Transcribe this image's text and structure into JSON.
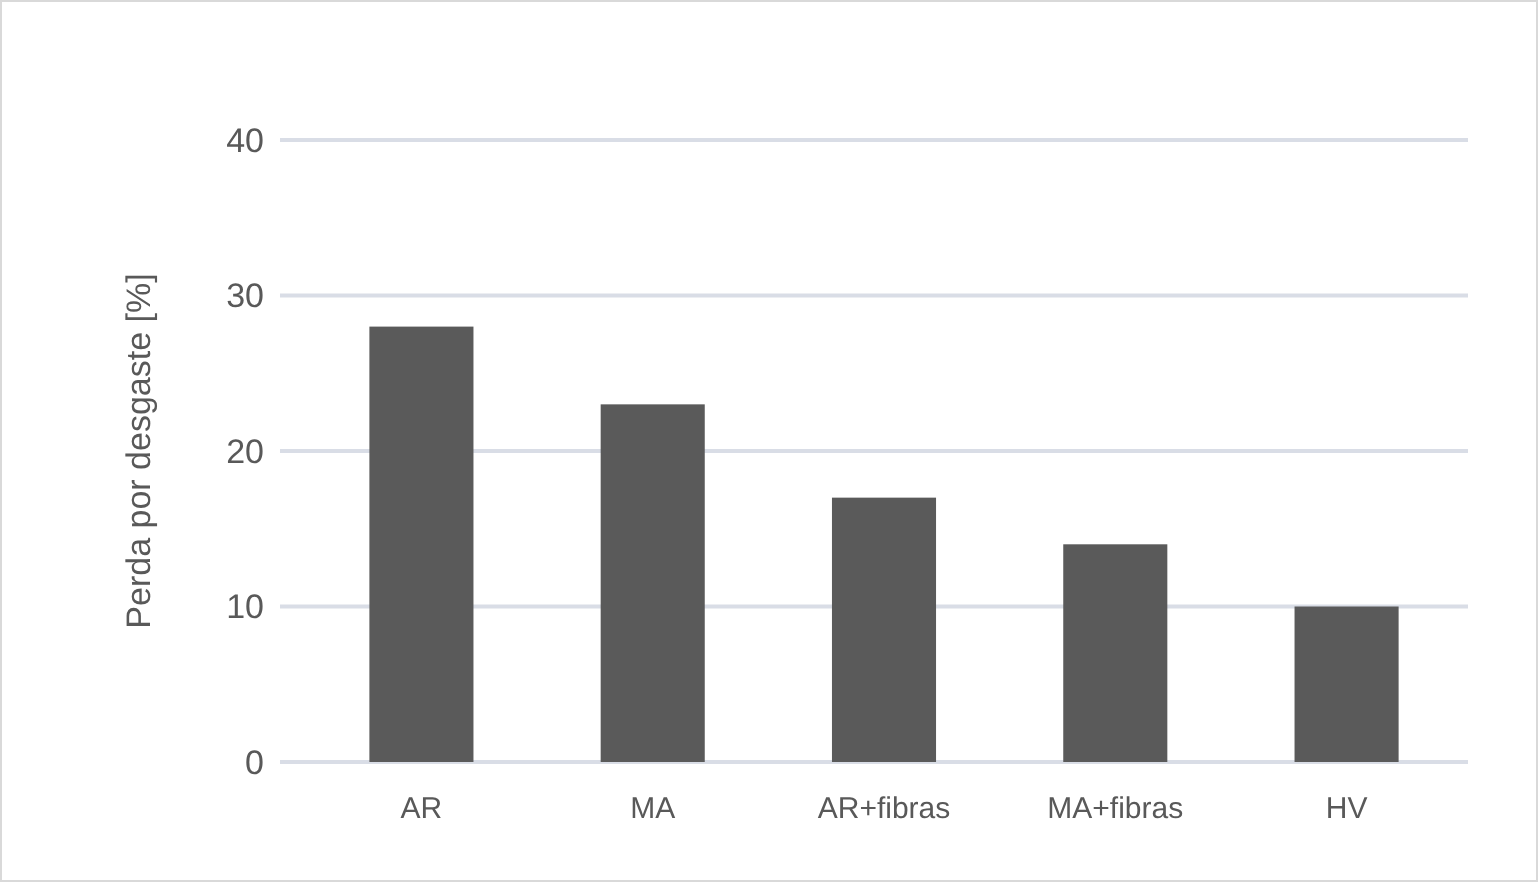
{
  "chart_data": {
    "type": "bar",
    "ylabel": "Perda por desgaste [%]",
    "categories": [
      "AR",
      "MA",
      "AR+fibras",
      "MA+fibras",
      "HV"
    ],
    "values": [
      28,
      23,
      17,
      14,
      10
    ],
    "color": "#5a5a5a",
    "ylim": [
      0,
      40
    ],
    "yticks": [
      0,
      10,
      20,
      30,
      40
    ],
    "grid": "y"
  }
}
